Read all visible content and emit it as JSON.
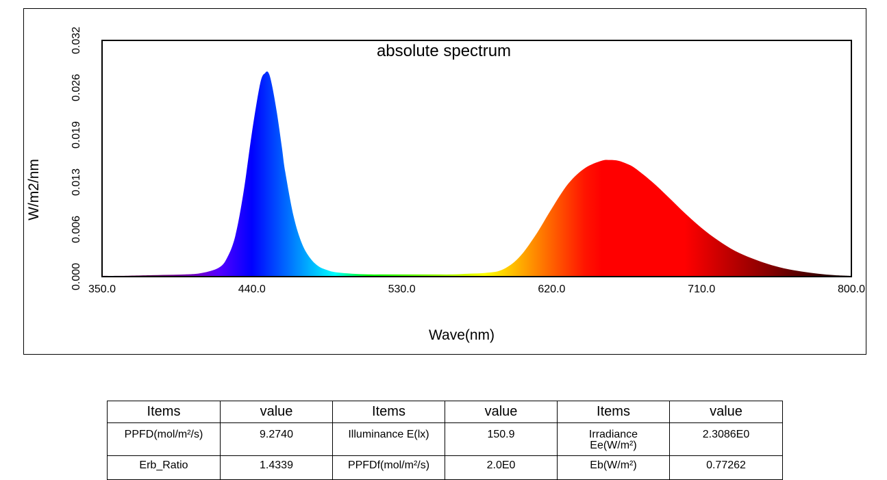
{
  "chart_data": {
    "type": "area",
    "title": "absolute spectrum",
    "xlabel": "Wave(nm)",
    "ylabel": "W/m2/nm",
    "xlim": [
      350,
      800
    ],
    "ylim": [
      0,
      0.032
    ],
    "x_ticks": [
      "350.0",
      "440.0",
      "530.0",
      "620.0",
      "710.0",
      "800.0"
    ],
    "y_ticks": [
      "0.000",
      "0.006",
      "0.013",
      "0.019",
      "0.026",
      "0.032"
    ],
    "fill": "wavelength-colored spectrum",
    "grid": false,
    "legend": "none",
    "series": [
      {
        "x": [
          350,
          360,
          380,
          400,
          410,
          420,
          425,
          430,
          435,
          440,
          445,
          448,
          450,
          452,
          455,
          458,
          460,
          465,
          470,
          475,
          480,
          485,
          490,
          500,
          510,
          520,
          530,
          540,
          550,
          560,
          570,
          580,
          590,
          600,
          610,
          620,
          630,
          640,
          650,
          655,
          660,
          665,
          670,
          680,
          690,
          700,
          710,
          720,
          730,
          740,
          750,
          760,
          770,
          780,
          790,
          800
        ],
        "y": [
          0.0001,
          0.0001,
          0.0002,
          0.0003,
          0.0005,
          0.0012,
          0.0025,
          0.0055,
          0.0115,
          0.0195,
          0.0262,
          0.0276,
          0.0276,
          0.026,
          0.0222,
          0.0175,
          0.0142,
          0.0082,
          0.0045,
          0.0025,
          0.0014,
          0.0009,
          0.0006,
          0.0004,
          0.0003,
          0.0003,
          0.0003,
          0.0003,
          0.0003,
          0.0003,
          0.0004,
          0.0005,
          0.0009,
          0.0025,
          0.0055,
          0.0092,
          0.0126,
          0.0147,
          0.0157,
          0.0158,
          0.0157,
          0.0153,
          0.0147,
          0.0129,
          0.0108,
          0.0086,
          0.0066,
          0.0049,
          0.0035,
          0.0025,
          0.0017,
          0.0011,
          0.0007,
          0.0004,
          0.0002,
          0.0001
        ]
      }
    ]
  },
  "table": {
    "headers": [
      "Items",
      "value",
      "Items",
      "value",
      "Items",
      "value"
    ],
    "rows": [
      [
        "PPFD(mol/m²/s)",
        "9.2740",
        "Illuminance E(lx)",
        "150.9",
        "Irradiance\nEe(W/m²)",
        "2.3086E0"
      ],
      [
        "Erb_Ratio",
        "1.4339",
        "PPFDf(mol/m²/s)",
        "2.0E0",
        "Eb(W/m²)",
        "0.77262"
      ]
    ]
  }
}
